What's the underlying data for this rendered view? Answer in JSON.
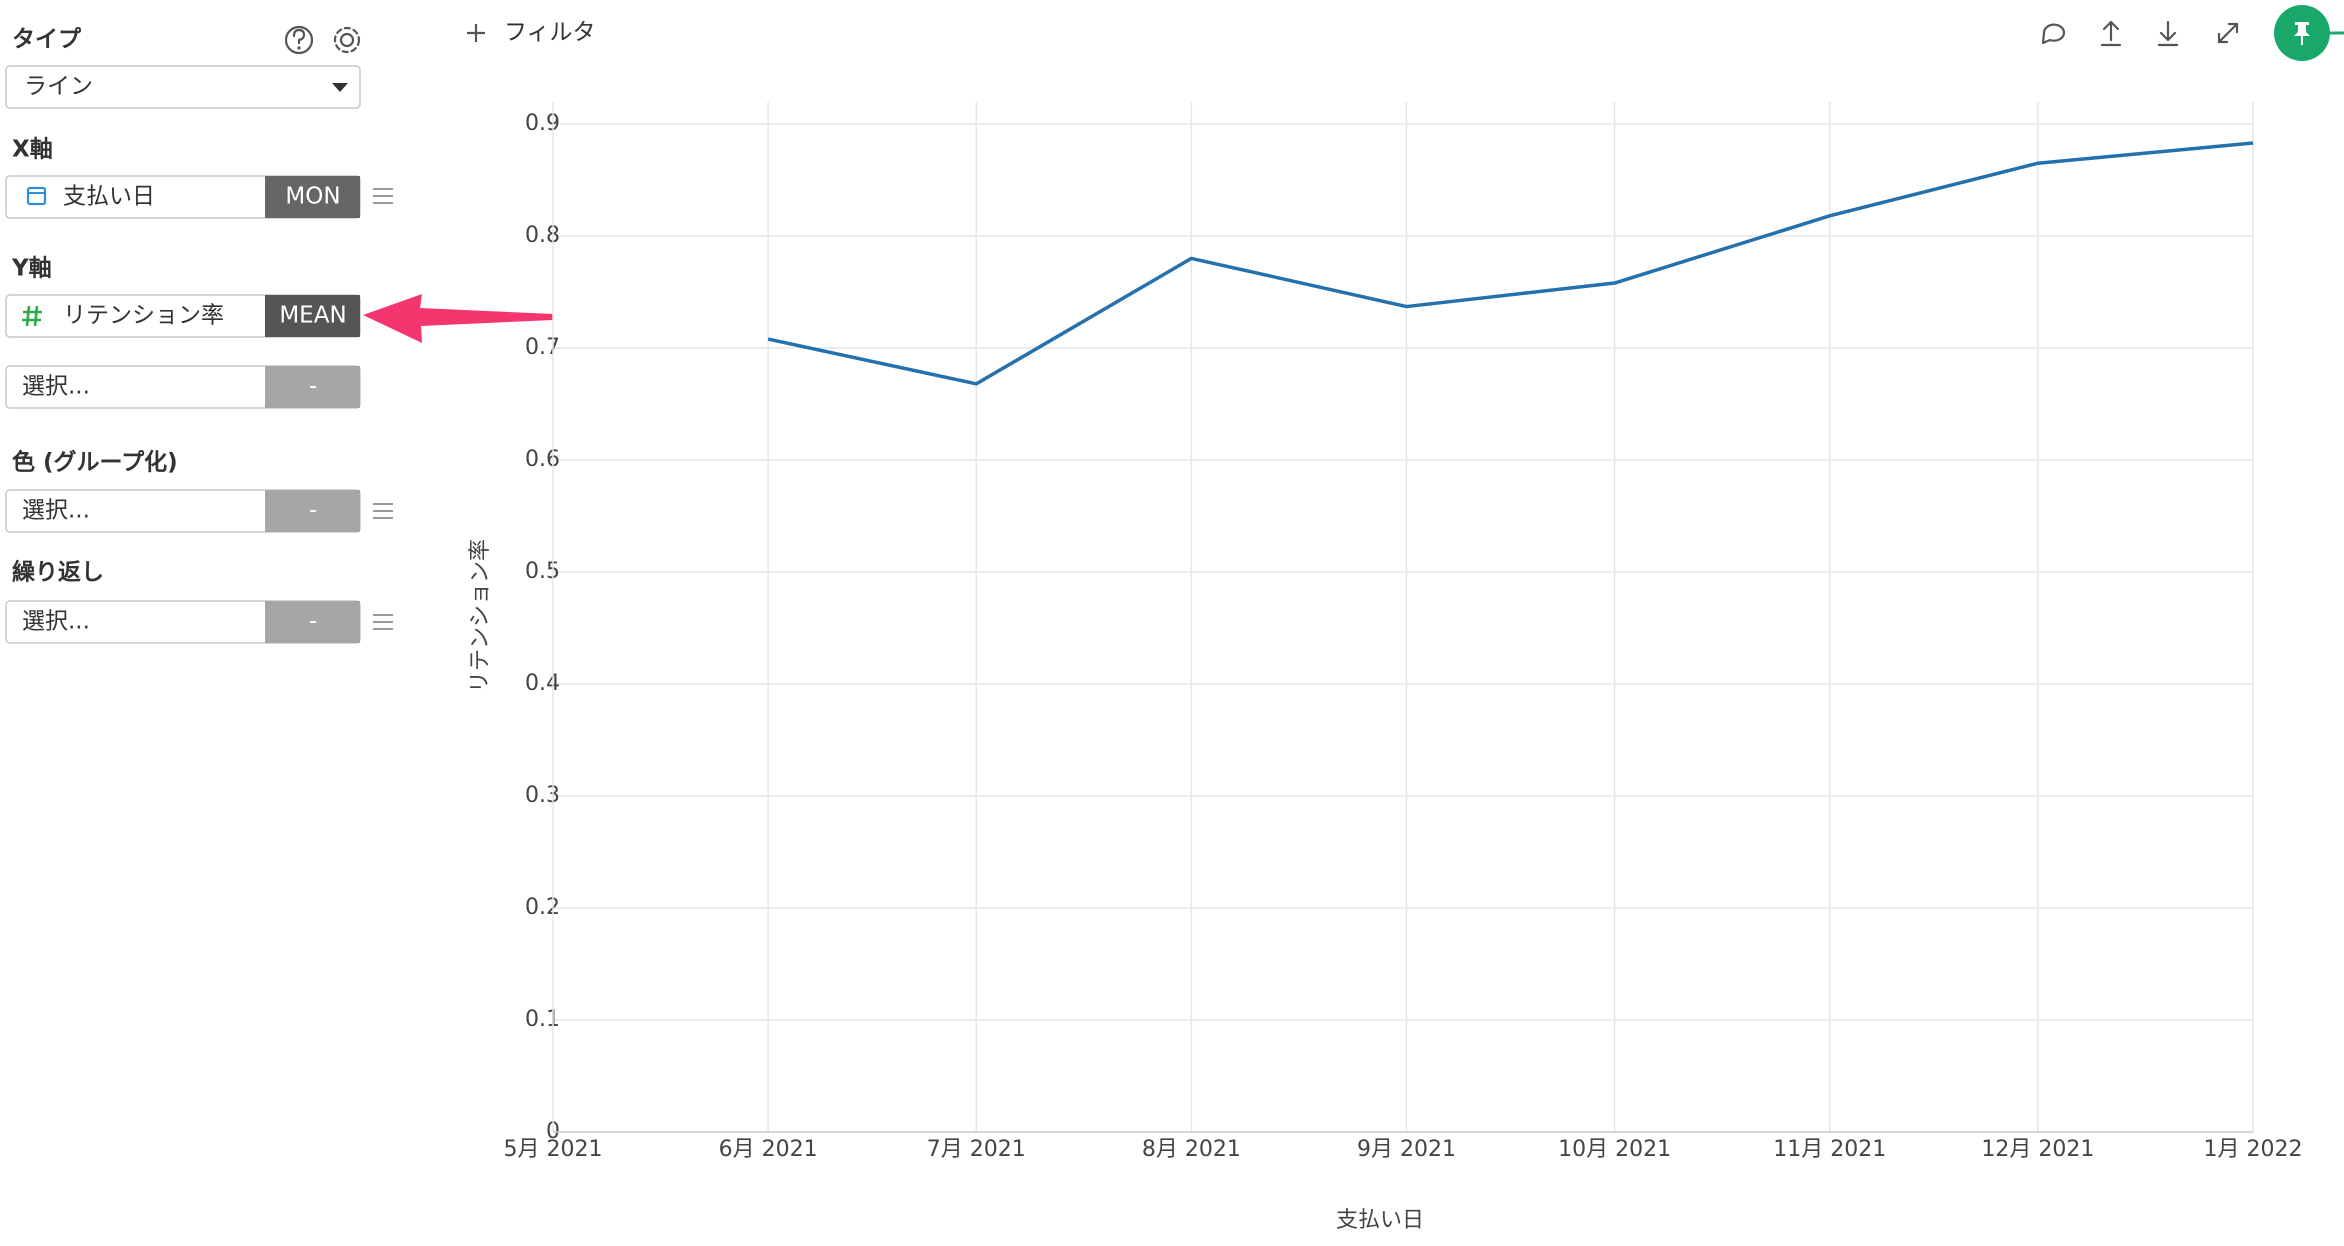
{
  "sidebar": {
    "type_label": "タイプ",
    "type_value": "ライン",
    "x_label": "X軸",
    "x_field": "支払い日",
    "x_agg": "MON",
    "y_label": "Y軸",
    "y_field": "リテンション率",
    "y_agg": "MEAN",
    "y2_field": "選択...",
    "y2_agg": "-",
    "color_label": "色 (グループ化)",
    "color_field": "選択...",
    "color_agg": "-",
    "repeat_label": "繰り返し",
    "repeat_field": "選択...",
    "repeat_agg": "-"
  },
  "toolbar": {
    "filter": "フィルタ"
  },
  "chart_data": {
    "type": "line",
    "x_label": "支払い日",
    "y_label": "リテンション率",
    "x": [
      "2021-06",
      "2021-07",
      "2021-08",
      "2021-09",
      "2021-10",
      "2021-11",
      "2021-12",
      "2022-01"
    ],
    "series": [
      {
        "name": "リテンション率",
        "color": "#2471ae",
        "values": [
          0.708,
          0.668,
          0.78,
          0.737,
          0.758,
          0.818,
          0.865,
          0.883
        ]
      }
    ],
    "xlim": [
      "2021-05",
      "2022-01"
    ],
    "xticks": [
      {
        "value": "2021-05",
        "label": "5月 2021"
      },
      {
        "value": "2021-06",
        "label": "6月 2021"
      },
      {
        "value": "2021-07",
        "label": "7月 2021"
      },
      {
        "value": "2021-08",
        "label": "8月 2021"
      },
      {
        "value": "2021-09",
        "label": "9月 2021"
      },
      {
        "value": "2021-10",
        "label": "10月 2021"
      },
      {
        "value": "2021-11",
        "label": "11月 2021"
      },
      {
        "value": "2021-12",
        "label": "12月 2021"
      },
      {
        "value": "2022-01",
        "label": "1月 2022"
      }
    ],
    "ylim": [
      0,
      0.9
    ],
    "yticks": [
      0,
      0.1,
      0.2,
      0.3,
      0.4,
      0.5,
      0.6,
      0.7,
      0.8,
      0.9
    ],
    "grid": true
  }
}
